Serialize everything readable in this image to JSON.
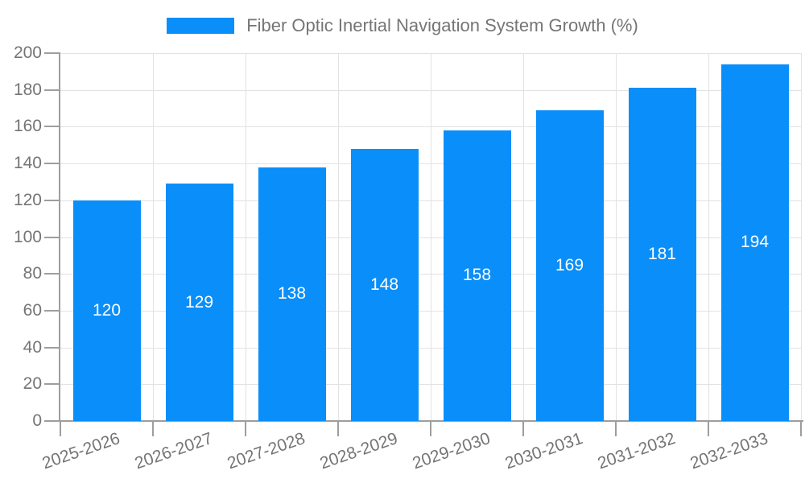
{
  "chart_data": {
    "type": "bar",
    "title": "Fiber Optic Inertial Navigation System Growth (%)",
    "categories": [
      "2025-2026",
      "2026-2027",
      "2027-2028",
      "2028-2029",
      "2029-2030",
      "2030-2031",
      "2031-2032",
      "2032-2033"
    ],
    "values": [
      120,
      129,
      138,
      148,
      158,
      169,
      181,
      194
    ],
    "xlabel": "",
    "ylabel": "",
    "ylim": [
      0,
      200
    ],
    "yticks": [
      0,
      20,
      40,
      60,
      80,
      100,
      120,
      140,
      160,
      180,
      200
    ],
    "grid": true,
    "legend_position": "top-center",
    "value_labels": "inside-center",
    "x_label_rotation_deg": -19,
    "colors": {
      "bar": "#0a8ef9",
      "value_label": "#ffffff",
      "tick_label": "#757575",
      "legend_text": "#757575",
      "axis_line": "#9e9e9e",
      "grid_line": "#e2e2e2",
      "background": "#ffffff"
    }
  }
}
